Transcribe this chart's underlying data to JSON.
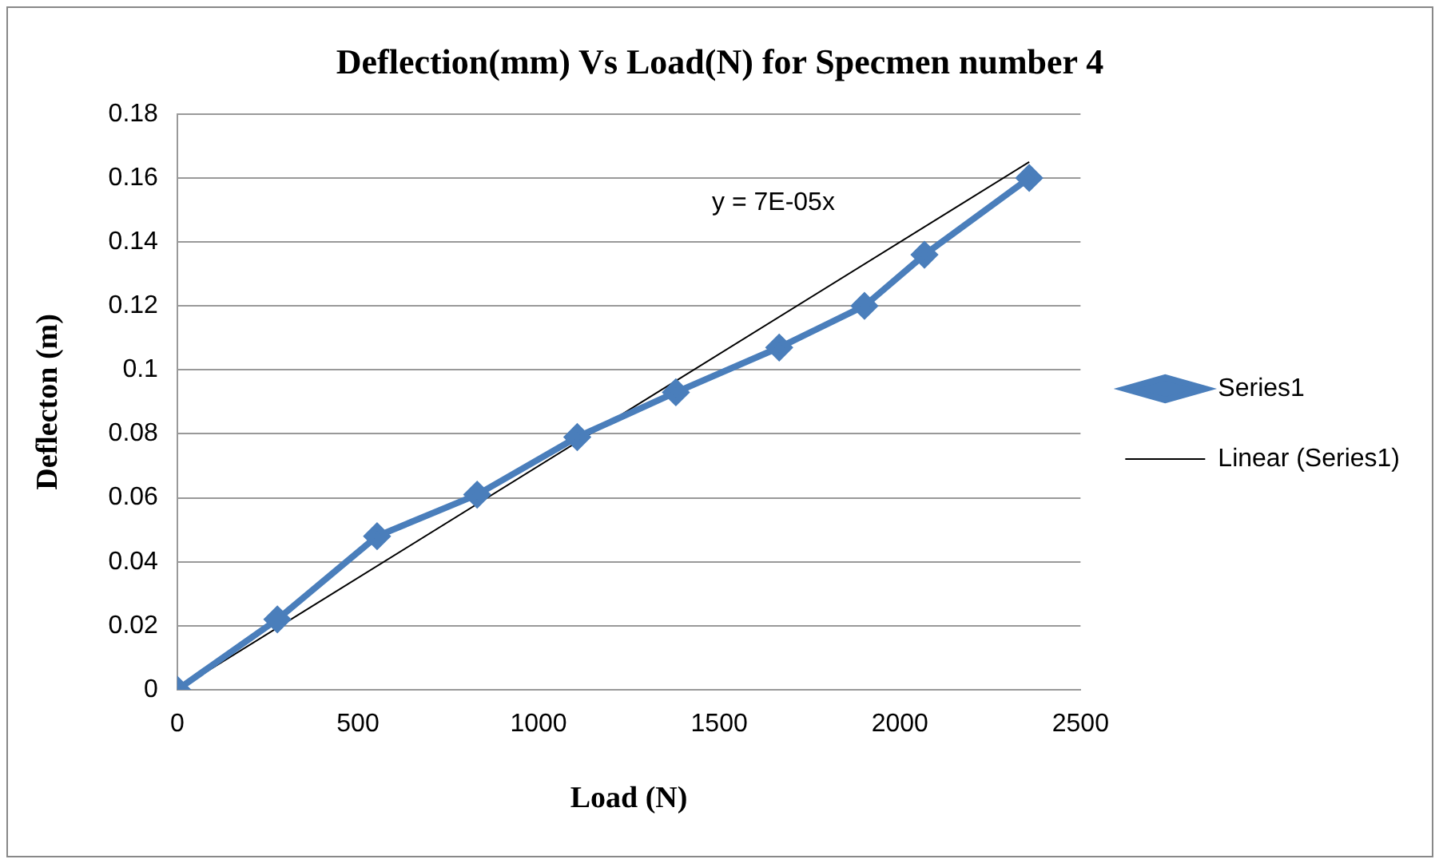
{
  "chart_data": {
    "type": "line",
    "title": "Deflection(mm) Vs Load(N) for Specmen number 4",
    "xlabel": "Load (N)",
    "ylabel": "Deflecton (m)",
    "x": [
      0,
      277,
      553,
      830,
      1107,
      1380,
      1666,
      1902,
      2068,
      2358
    ],
    "series": [
      {
        "name": "Series1",
        "color": "#4a7ebb",
        "values": [
          0,
          0.022,
          0.048,
          0.061,
          0.079,
          0.093,
          0.107,
          0.12,
          0.136,
          0.16
        ],
        "marker": "diamond"
      },
      {
        "name": "Linear (Series1)",
        "type": "line",
        "color": "#000000",
        "x": [
          0,
          2358
        ],
        "values": [
          0,
          0.165
        ],
        "marker": "none"
      }
    ],
    "xlim": [
      0,
      2500
    ],
    "xticks": [
      0,
      500,
      1000,
      1500,
      2000,
      2500
    ],
    "ylim": [
      0,
      0.18
    ],
    "yticks": [
      0,
      0.02,
      0.04,
      0.06,
      0.08,
      0.1,
      0.12,
      0.14,
      0.16,
      0.18
    ],
    "grid": "y",
    "legend": "right",
    "annotations": [
      "y = 7E-05x"
    ]
  }
}
